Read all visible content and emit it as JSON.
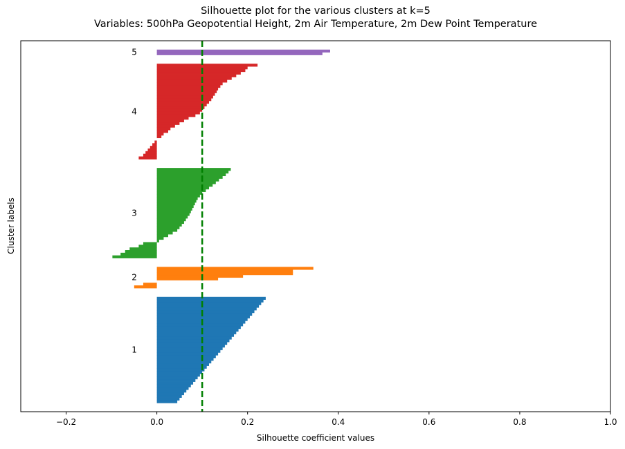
{
  "chart_data": {
    "type": "bar",
    "orientation": "horizontal",
    "title_line1": "Silhouette plot for the various clusters at k=5",
    "title_line2": "Variables: 500hPa Geopotential Height, 2m Air Temperature, 2m Dew Point Temperature",
    "xlabel": "Silhouette coefficient values",
    "ylabel": "Cluster labels",
    "xlim": [
      -0.3,
      1.0
    ],
    "xticks": [
      -0.2,
      0.0,
      0.2,
      0.4,
      0.6,
      0.8,
      1.0
    ],
    "xtick_labels": [
      "−0.2",
      "0.0",
      "0.2",
      "0.4",
      "0.6",
      "0.8",
      "1.0"
    ],
    "yticks_shown": false,
    "average_silhouette_score": 0.1,
    "average_line_color": "#008000",
    "clusters": [
      {
        "label": "1",
        "color": "#1f77b4",
        "sorted_silhouette_values": [
          0.24,
          0.235,
          0.23,
          0.225,
          0.22,
          0.215,
          0.21,
          0.205,
          0.2,
          0.195,
          0.19,
          0.185,
          0.18,
          0.175,
          0.17,
          0.165,
          0.16,
          0.155,
          0.15,
          0.145,
          0.14,
          0.135,
          0.13,
          0.125,
          0.12,
          0.115,
          0.11,
          0.105,
          0.1,
          0.095,
          0.09,
          0.085,
          0.08,
          0.075,
          0.07,
          0.065,
          0.06,
          0.055,
          0.05,
          0.045
        ]
      },
      {
        "label": "2",
        "color": "#ff7f0e",
        "sorted_silhouette_values": [
          0.345,
          0.3,
          0.3,
          0.19,
          0.135,
          0.0,
          -0.03,
          -0.05
        ]
      },
      {
        "label": "3",
        "color": "#2ca02c",
        "sorted_silhouette_values": [
          0.163,
          0.158,
          0.152,
          0.145,
          0.137,
          0.13,
          0.123,
          0.115,
          0.108,
          0.1,
          0.095,
          0.09,
          0.087,
          0.084,
          0.081,
          0.078,
          0.075,
          0.072,
          0.068,
          0.064,
          0.06,
          0.055,
          0.05,
          0.045,
          0.035,
          0.025,
          0.015,
          0.005,
          -0.03,
          -0.04,
          -0.06,
          -0.07,
          -0.08,
          -0.098
        ]
      },
      {
        "label": "4",
        "color": "#d62728",
        "sorted_silhouette_values": [
          0.222,
          0.2,
          0.195,
          0.185,
          0.175,
          0.165,
          0.155,
          0.145,
          0.14,
          0.135,
          0.132,
          0.128,
          0.124,
          0.12,
          0.115,
          0.11,
          0.105,
          0.1,
          0.095,
          0.085,
          0.07,
          0.06,
          0.05,
          0.04,
          0.03,
          0.025,
          0.015,
          0.01,
          0.0,
          -0.005,
          -0.01,
          -0.015,
          -0.02,
          -0.025,
          -0.03,
          -0.04
        ]
      },
      {
        "label": "5",
        "color": "#9467bd",
        "sorted_silhouette_values": [
          0.382,
          0.365
        ]
      }
    ]
  }
}
